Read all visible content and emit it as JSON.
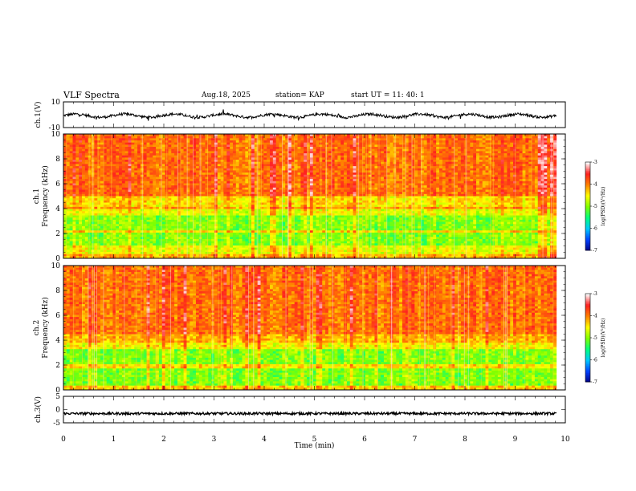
{
  "header": {
    "title": "VLF Spectra",
    "date": "Aug.18, 2025",
    "station": "station= KAP",
    "start": "start  UT =   11: 40: 1"
  },
  "chart_data": [
    {
      "type": "line",
      "id": "ch1-waveform",
      "ylabel": "ch.1(V)",
      "ylim": [
        -10,
        10
      ],
      "yticks": [
        "10",
        "-10"
      ],
      "xlim": [
        0,
        10
      ],
      "x_data_end": 9.82,
      "approx_range": [
        -3,
        1.5
      ],
      "color": "#000000"
    },
    {
      "type": "heatmap",
      "id": "ch1-spectrogram",
      "ylabel": "ch.1\nFrequency  (kHz)",
      "ylim": [
        0,
        10
      ],
      "yticks": [
        "0",
        "2",
        "4",
        "6",
        "8",
        "10"
      ],
      "xlim": [
        0,
        10
      ],
      "x_data_end": 9.82,
      "bands": [
        {
          "from": 0.0,
          "to": 0.35,
          "level": -4.2
        },
        {
          "from": 0.35,
          "to": 1.0,
          "level": -4.6
        },
        {
          "from": 1.0,
          "to": 2.0,
          "level": -5.0
        },
        {
          "from": 2.0,
          "to": 2.3,
          "level": -4.4
        },
        {
          "from": 2.3,
          "to": 3.4,
          "level": -5.0
        },
        {
          "from": 3.4,
          "to": 3.9,
          "level": -4.6
        },
        {
          "from": 3.9,
          "to": 4.1,
          "level": -4.1
        },
        {
          "from": 4.1,
          "to": 5.0,
          "level": -4.4
        },
        {
          "from": 5.0,
          "to": 10.0,
          "level": -3.9
        }
      ],
      "colorbar": {
        "label": "log(PSD)(V²/Hz)",
        "ticks": [
          "-3",
          "-4",
          "-5",
          "-6",
          "-7"
        ],
        "range": [
          -7,
          -3
        ]
      }
    },
    {
      "type": "heatmap",
      "id": "ch2-spectrogram",
      "ylabel": "ch.2\nFrequency  (kHz)",
      "ylim": [
        0,
        10
      ],
      "yticks": [
        "0",
        "2",
        "4",
        "6",
        "8",
        "10"
      ],
      "xlim": [
        0,
        10
      ],
      "x_data_end": 9.82,
      "bands": [
        {
          "from": 0.0,
          "to": 0.4,
          "level": -4.3
        },
        {
          "from": 0.4,
          "to": 1.8,
          "level": -5.0
        },
        {
          "from": 1.8,
          "to": 2.1,
          "level": -4.4
        },
        {
          "from": 2.1,
          "to": 3.2,
          "level": -5.0
        },
        {
          "from": 3.2,
          "to": 3.8,
          "level": -4.5
        },
        {
          "from": 3.8,
          "to": 4.5,
          "level": -4.2
        },
        {
          "from": 4.5,
          "to": 10.0,
          "level": -3.9
        }
      ],
      "colorbar": {
        "label": "log(PSD)(V²/Hz)",
        "ticks": [
          "-3",
          "-4",
          "-5",
          "-6",
          "-7"
        ],
        "range": [
          -7,
          -3
        ]
      }
    },
    {
      "type": "line",
      "id": "ch3-waveform",
      "ylabel": "ch.3(V)",
      "ylim": [
        -5,
        5
      ],
      "yticks": [
        "5",
        "0",
        "-5"
      ],
      "xlim": [
        0,
        10
      ],
      "x_data_end": 9.82,
      "approx_level": -1.5,
      "color": "#000000"
    }
  ],
  "x_axis": {
    "label": "Time  (min)",
    "ticks": [
      "0",
      "1",
      "2",
      "3",
      "4",
      "5",
      "6",
      "7",
      "8",
      "9",
      "10"
    ]
  },
  "colors": {
    "scale": [
      "#000080",
      "#0040ff",
      "#00c8ff",
      "#00ff80",
      "#80ff00",
      "#ffff00",
      "#ff8000",
      "#ff2020",
      "#ffffff"
    ]
  }
}
